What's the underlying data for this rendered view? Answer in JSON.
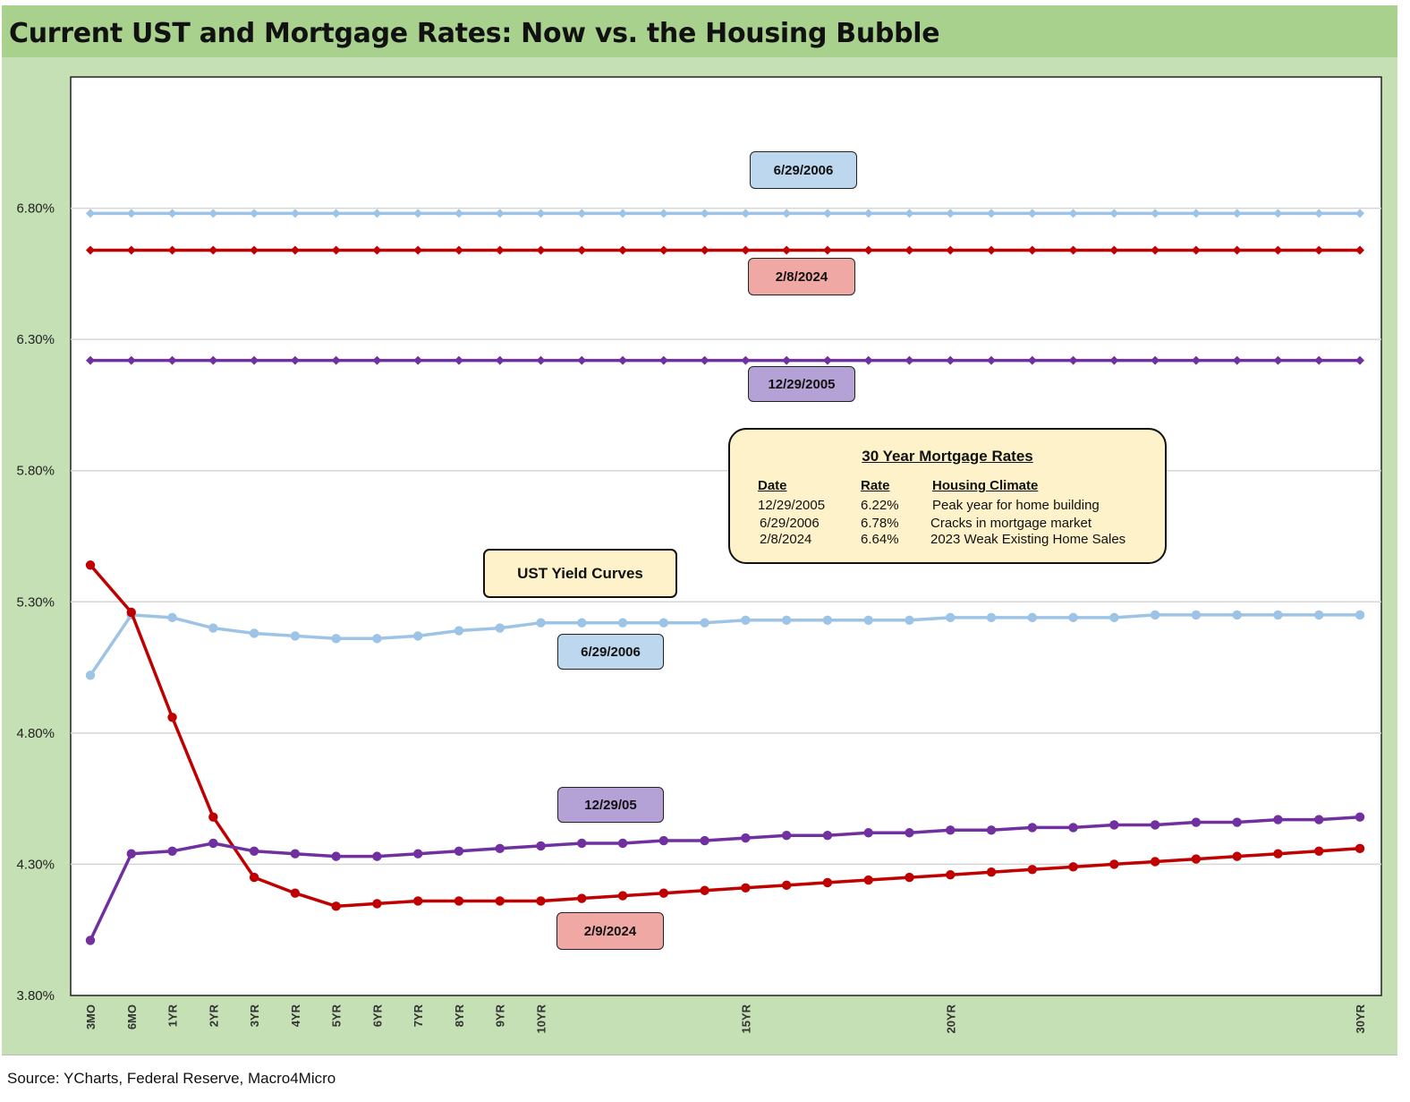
{
  "title": "Current UST and Mortgage Rates: Now vs. the Housing Bubble",
  "source": "Source: YCharts, Federal Reserve, Macro4Micro",
  "colors": {
    "title_bar": "#a9d18e",
    "chart_background": "#c5e0b4",
    "plot_background": "#ffffff",
    "light_blue": "#9dc3e6",
    "red": "#c00000",
    "purple": "#7030a0"
  },
  "labels": {
    "mortgage_2006": "6/29/2006",
    "mortgage_2024": "2/8/2024",
    "mortgage_2005": "12/29/2005",
    "ust_callout": "UST Yield Curves",
    "ust_2006": "6/29/2006",
    "ust_2005": "12/29/05",
    "ust_2024": "2/9/2024"
  },
  "mortgage_table": {
    "title": "30 Year Mortgage Rates",
    "headers": [
      "Date",
      "Rate",
      "Housing Climate"
    ],
    "rows": [
      [
        "12/29/2005",
        "6.22%",
        "Peak year for home building"
      ],
      [
        "6/29/2006",
        "6.78%",
        "Cracks in mortgage market"
      ],
      [
        "2/8/2024",
        "6.64%",
        "2023 Weak Existing Home Sales"
      ]
    ]
  },
  "chart_data": {
    "type": "line",
    "ylim": [
      3.8,
      7.3
    ],
    "yticks": [
      3.8,
      4.3,
      4.8,
      5.3,
      5.8,
      6.3,
      6.8
    ],
    "ytick_labels": [
      "3.80%",
      "4.30%",
      "4.80%",
      "5.30%",
      "5.80%",
      "6.30%",
      "6.80%"
    ],
    "grid": "horizontal",
    "legend": "none",
    "x_positions": 32,
    "x_tick_labels": [
      {
        "index": 0,
        "label": "3MO"
      },
      {
        "index": 1,
        "label": "6MO"
      },
      {
        "index": 2,
        "label": "1YR"
      },
      {
        "index": 3,
        "label": "2YR"
      },
      {
        "index": 4,
        "label": "3YR"
      },
      {
        "index": 5,
        "label": "4YR"
      },
      {
        "index": 6,
        "label": "5YR"
      },
      {
        "index": 7,
        "label": "6YR"
      },
      {
        "index": 8,
        "label": "7YR"
      },
      {
        "index": 9,
        "label": "8YR"
      },
      {
        "index": 10,
        "label": "9YR"
      },
      {
        "index": 11,
        "label": "10YR"
      },
      {
        "index": 16,
        "label": "15YR"
      },
      {
        "index": 21,
        "label": "20YR"
      },
      {
        "index": 31,
        "label": "30YR"
      }
    ],
    "series": [
      {
        "color": "#9dc3e6",
        "marker": "diamond",
        "constant": 6.78,
        "values": [
          6.78,
          6.78,
          6.78,
          6.78,
          6.78,
          6.78,
          6.78,
          6.78,
          6.78,
          6.78,
          6.78,
          6.78,
          6.78,
          6.78,
          6.78,
          6.78,
          6.78,
          6.78,
          6.78,
          6.78,
          6.78,
          6.78,
          6.78,
          6.78,
          6.78,
          6.78,
          6.78,
          6.78,
          6.78,
          6.78,
          6.78,
          6.78
        ]
      },
      {
        "color": "#c00000",
        "marker": "diamond",
        "constant": 6.64,
        "values": [
          6.64,
          6.64,
          6.64,
          6.64,
          6.64,
          6.64,
          6.64,
          6.64,
          6.64,
          6.64,
          6.64,
          6.64,
          6.64,
          6.64,
          6.64,
          6.64,
          6.64,
          6.64,
          6.64,
          6.64,
          6.64,
          6.64,
          6.64,
          6.64,
          6.64,
          6.64,
          6.64,
          6.64,
          6.64,
          6.64,
          6.64,
          6.64
        ]
      },
      {
        "color": "#7030a0",
        "marker": "diamond",
        "constant": 6.22,
        "values": [
          6.22,
          6.22,
          6.22,
          6.22,
          6.22,
          6.22,
          6.22,
          6.22,
          6.22,
          6.22,
          6.22,
          6.22,
          6.22,
          6.22,
          6.22,
          6.22,
          6.22,
          6.22,
          6.22,
          6.22,
          6.22,
          6.22,
          6.22,
          6.22,
          6.22,
          6.22,
          6.22,
          6.22,
          6.22,
          6.22,
          6.22,
          6.22
        ]
      },
      {
        "color": "#9dc3e6",
        "marker": "circle",
        "values": [
          5.02,
          5.25,
          5.24,
          5.2,
          5.18,
          5.17,
          5.16,
          5.16,
          5.17,
          5.19,
          5.2,
          5.22,
          5.22,
          5.22,
          5.22,
          5.22,
          5.23,
          5.23,
          5.23,
          5.23,
          5.23,
          5.24,
          5.24,
          5.24,
          5.24,
          5.24,
          5.25,
          5.25,
          5.25,
          5.25,
          5.25,
          5.25
        ]
      },
      {
        "color": "#c00000",
        "marker": "circle",
        "values": [
          5.44,
          5.26,
          4.86,
          4.48,
          4.25,
          4.19,
          4.14,
          4.15,
          4.16,
          4.16,
          4.16,
          4.16,
          4.17,
          4.18,
          4.19,
          4.2,
          4.21,
          4.22,
          4.23,
          4.24,
          4.25,
          4.26,
          4.27,
          4.28,
          4.29,
          4.3,
          4.31,
          4.32,
          4.33,
          4.34,
          4.35,
          4.36
        ]
      },
      {
        "color": "#7030a0",
        "marker": "circle",
        "values": [
          4.01,
          4.34,
          4.35,
          4.38,
          4.35,
          4.34,
          4.33,
          4.33,
          4.34,
          4.35,
          4.36,
          4.37,
          4.38,
          4.38,
          4.39,
          4.39,
          4.4,
          4.41,
          4.41,
          4.42,
          4.42,
          4.43,
          4.43,
          4.44,
          4.44,
          4.45,
          4.45,
          4.46,
          4.46,
          4.47,
          4.47,
          4.48
        ]
      }
    ]
  }
}
